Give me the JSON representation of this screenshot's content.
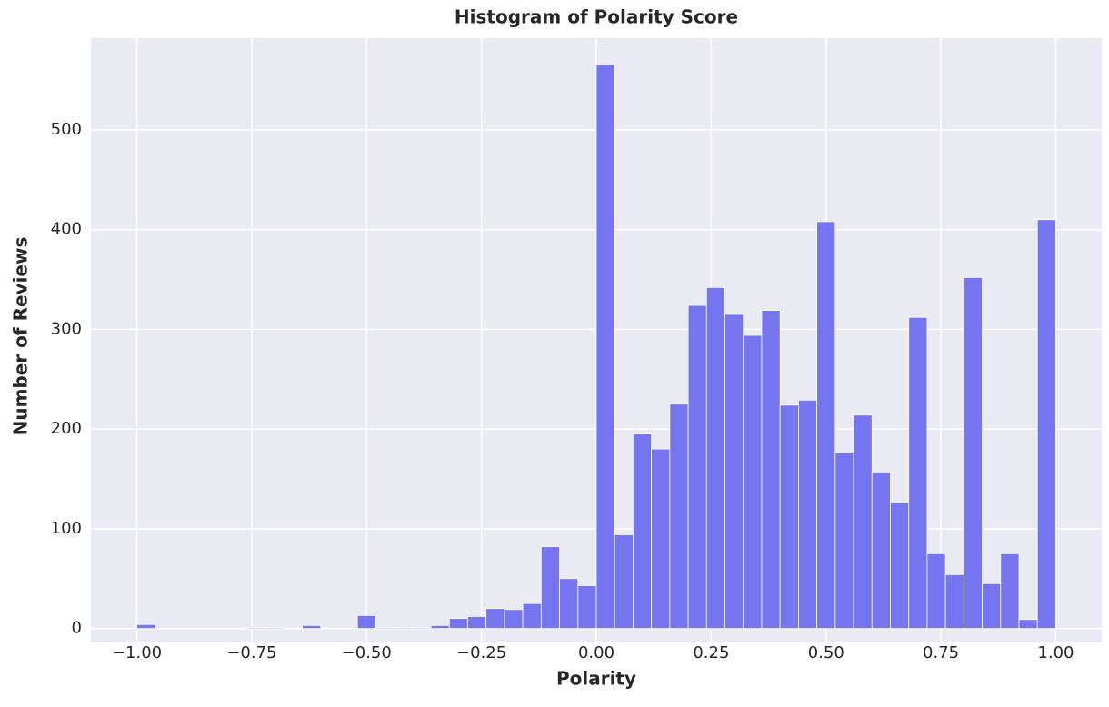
{
  "chart_data": {
    "type": "histogram",
    "title": "Histogram of Polarity Score",
    "xlabel": "Polarity",
    "ylabel": "Number of Reviews",
    "bins": [
      -1,
      -0.96,
      -0.92,
      -0.88,
      -0.84,
      -0.8,
      -0.76,
      -0.72,
      -0.68,
      -0.64,
      -0.6,
      -0.56,
      -0.52,
      -0.48,
      -0.44,
      -0.4,
      -0.36,
      -0.32,
      -0.28,
      -0.24,
      -0.2,
      -0.16,
      -0.12,
      -0.08,
      -0.04,
      0,
      0.04,
      0.08,
      0.12,
      0.16,
      0.2,
      0.24,
      0.28,
      0.32,
      0.36,
      0.4,
      0.44,
      0.48,
      0.52,
      0.56,
      0.6,
      0.64,
      0.68,
      0.72,
      0.76,
      0.8,
      0.84,
      0.88,
      0.92,
      0.96,
      1
    ],
    "counts": [
      4,
      0,
      0,
      0,
      0,
      0,
      1,
      1,
      0,
      3,
      0,
      0,
      13,
      1,
      1,
      1,
      3,
      10,
      12,
      20,
      19,
      25,
      82,
      50,
      43,
      565,
      94,
      195,
      180,
      225,
      324,
      342,
      315,
      294,
      319,
      224,
      229,
      408,
      176,
      214,
      157,
      126,
      312,
      75,
      54,
      352,
      45,
      75,
      9,
      410
    ],
    "color": "#7575f0",
    "xlim": [
      -1.1,
      1.1
    ],
    "ylim": [
      -14,
      592
    ],
    "xticks": [
      {
        "value": -1,
        "label": "−1.00"
      },
      {
        "value": -0.75,
        "label": "−0.75"
      },
      {
        "value": -0.5,
        "label": "−0.50"
      },
      {
        "value": -0.25,
        "label": "−0.25"
      },
      {
        "value": 0,
        "label": "0.00"
      },
      {
        "value": 0.25,
        "label": "0.25"
      },
      {
        "value": 0.5,
        "label": "0.50"
      },
      {
        "value": 0.75,
        "label": "0.75"
      },
      {
        "value": 1,
        "label": "1.00"
      }
    ],
    "yticks": [
      0,
      100,
      200,
      300,
      400,
      500
    ],
    "grid": true
  }
}
